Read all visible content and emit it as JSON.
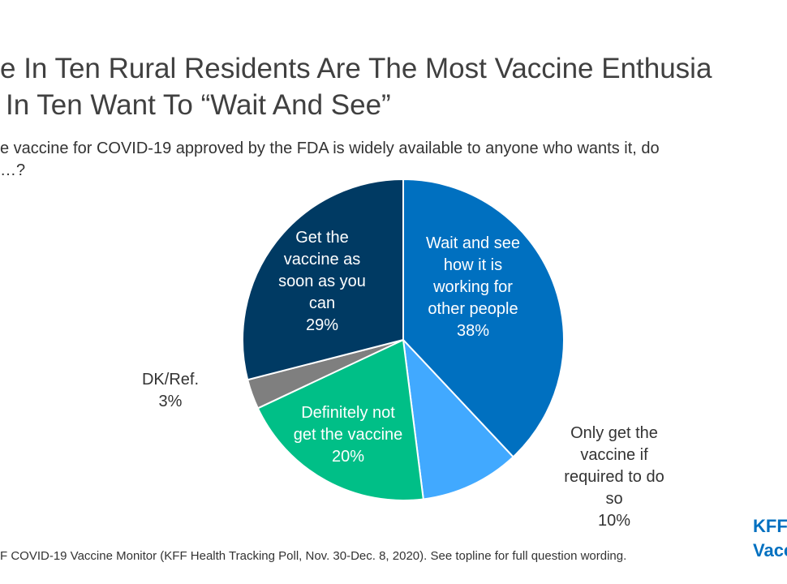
{
  "title_lines": [
    "e In Ten Rural Residents Are The Most Vaccine Enthusia",
    "In Ten Want To “Wait And See”"
  ],
  "question_lines": [
    "e vaccine for COVID-19 approved by the FDA is widely available to anyone who wants it, do",
    "…?"
  ],
  "source": "F COVID-19 Vaccine Monitor (KFF Health Tracking Poll, Nov. 30-Dec. 8, 2020). See topline for full question wording.",
  "logo_lines": [
    "KFF",
    "Vacc"
  ],
  "chart_data": {
    "type": "pie",
    "title": "",
    "start_angle_deg": 0,
    "direction": "clockwise",
    "slices": [
      {
        "label_lines": [
          "Wait and see",
          "how it is",
          "working for",
          "other people"
        ],
        "value": 38,
        "value_label": "38%",
        "color": "#0070c0",
        "label_color": "#ffffff",
        "label_placement": "inside"
      },
      {
        "label_lines": [
          "Only get the",
          "vaccine if",
          "required to do",
          "so"
        ],
        "value": 10,
        "value_label": "10%",
        "color": "#41a9ff",
        "label_color": "#333333",
        "label_placement": "outside"
      },
      {
        "label_lines": [
          "Definitely not",
          "get the vaccine"
        ],
        "value": 20,
        "value_label": "20%",
        "color": "#00bf87",
        "label_color": "#ffffff",
        "label_placement": "inside"
      },
      {
        "label_lines": [
          "DK/Ref."
        ],
        "value": 3,
        "value_label": "3%",
        "color": "#7f7f7f",
        "label_color": "#333333",
        "label_placement": "outside"
      },
      {
        "label_lines": [
          "Get the",
          "vaccine as",
          "soon as you",
          "can"
        ],
        "value": 29,
        "value_label": "29%",
        "color": "#003a63",
        "label_color": "#ffffff",
        "label_placement": "inside"
      }
    ]
  }
}
